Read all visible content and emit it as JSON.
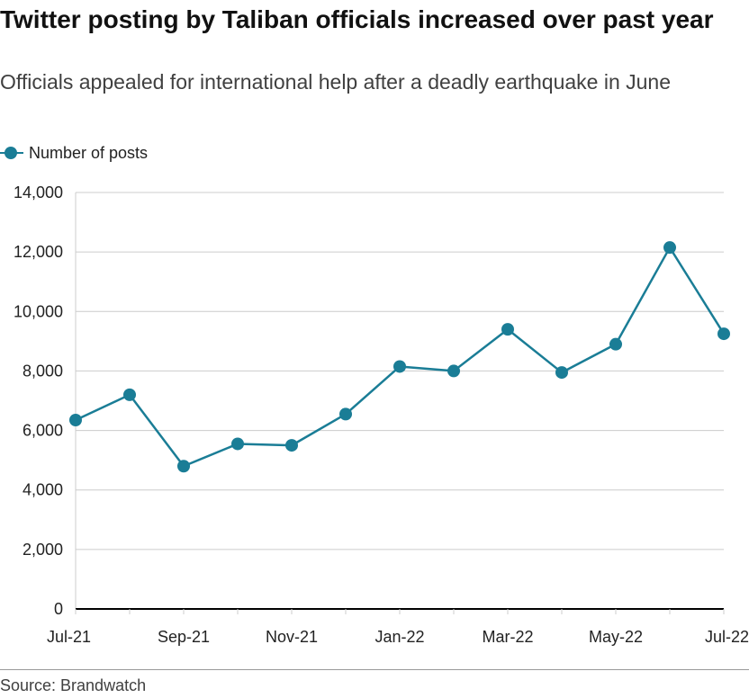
{
  "title": "Twitter posting by Taliban officials increased over past year",
  "subtitle": "Officials appealed for international help after a deadly earthquake in June",
  "source": "Source: Brandwatch",
  "colors": {
    "series": "#1a7d96",
    "grid": "#cccccc",
    "axis": "#000000"
  },
  "chart_data": {
    "type": "line",
    "title": "Twitter posting by Taliban officials increased over past year",
    "subtitle": "Officials appealed for international help after a deadly earthquake in June",
    "xlabel": "",
    "ylabel": "",
    "ylim": [
      0,
      14000
    ],
    "yticks": [
      0,
      2000,
      4000,
      6000,
      8000,
      10000,
      12000,
      14000
    ],
    "ytick_labels": [
      "0",
      "2,000",
      "4,000",
      "6,000",
      "8,000",
      "10,000",
      "12,000",
      "14,000"
    ],
    "x": [
      "Jul-21",
      "Aug-21",
      "Sep-21",
      "Oct-21",
      "Nov-21",
      "Dec-21",
      "Jan-22",
      "Feb-22",
      "Mar-22",
      "Apr-22",
      "May-22",
      "Jun-22",
      "Jul-22"
    ],
    "xtick_labels": [
      "Jul-21",
      "",
      "Sep-21",
      "",
      "Nov-21",
      "",
      "Jan-22",
      "",
      "Mar-22",
      "",
      "May-22",
      "",
      "Jul-22"
    ],
    "grid": true,
    "legend_position": "top-left",
    "series": [
      {
        "name": "Number of posts",
        "values": [
          6350,
          7200,
          4800,
          5550,
          5500,
          6550,
          8150,
          8000,
          9400,
          7950,
          8900,
          12150,
          9250
        ]
      }
    ]
  }
}
